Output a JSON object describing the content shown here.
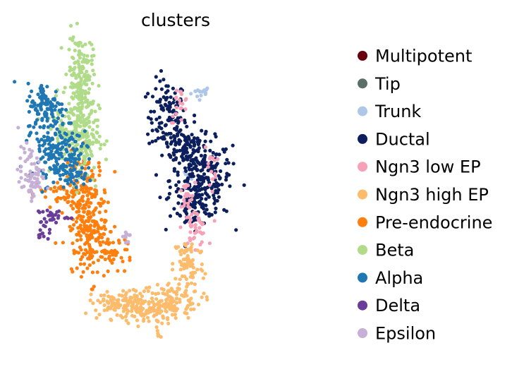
{
  "chart_data": {
    "type": "scatter",
    "title": "clusters",
    "xlabel": "",
    "ylabel": "",
    "grid": false,
    "axes_visible": false,
    "legend_position": "right",
    "xlim": [
      0,
      100
    ],
    "ylim": [
      0,
      100
    ],
    "point_count_note": "",
    "series": [
      {
        "name": "Multipotent",
        "color": "#67000d",
        "clusters": []
      },
      {
        "name": "Tip",
        "color": "#5a6e6a",
        "clusters": [
          [
            3,
            56,
            0.4,
            0.4,
            2
          ],
          [
            47,
            70,
            0.3,
            0.3,
            1
          ]
        ]
      },
      {
        "name": "Trunk",
        "color": "#aec7e8",
        "clusters": [
          [
            58,
            84,
            1.6,
            1.0,
            16
          ],
          [
            54,
            57,
            0.8,
            1.0,
            6
          ]
        ]
      },
      {
        "name": "Ductal",
        "color": "#0c1f5c",
        "clusters": [
          [
            47,
            76,
            3.0,
            6.0,
            110
          ],
          [
            53,
            66,
            3.5,
            3.5,
            80
          ],
          [
            58,
            55,
            5.0,
            6.5,
            230
          ],
          [
            56,
            46,
            3.0,
            3.0,
            50
          ]
        ]
      },
      {
        "name": "Ngn3 low EP",
        "color": "#f7a1b9",
        "clusters": [
          [
            51,
            80,
            1.5,
            3.0,
            20
          ],
          [
            56,
            39,
            2.0,
            3.0,
            40
          ],
          [
            61,
            60,
            1.0,
            4.0,
            15
          ],
          [
            53,
            49,
            1.5,
            2.5,
            20
          ]
        ]
      },
      {
        "name": "Ngn3 high EP",
        "color": "#fdbb6c",
        "clusters": [
          [
            54,
            27,
            2.5,
            5.0,
            80
          ],
          [
            48,
            15,
            5.0,
            3.0,
            100
          ],
          [
            40,
            12,
            5.0,
            2.5,
            110
          ],
          [
            32,
            14,
            5.0,
            2.5,
            90
          ],
          [
            44,
            4,
            0.5,
            1.0,
            6
          ]
        ]
      },
      {
        "name": "Pre-endocrine",
        "color": "#ff7f0e",
        "clusters": [
          [
            21,
            48,
            3.5,
            8.0,
            170
          ],
          [
            23,
            33,
            2.5,
            6.0,
            90
          ],
          [
            30,
            31,
            3.0,
            2.5,
            40
          ],
          [
            14,
            50,
            4.0,
            3.0,
            40
          ],
          [
            20,
            39,
            3.0,
            3.0,
            30
          ]
        ]
      },
      {
        "name": "Beta",
        "color": "#b0dc8a",
        "clusters": [
          [
            19,
            91,
            2.0,
            6.0,
            130
          ],
          [
            19,
            70,
            3.0,
            8.0,
            200
          ],
          [
            16,
            73,
            4.0,
            4.0,
            60
          ]
        ]
      },
      {
        "name": "Alpha",
        "color": "#1f77b4",
        "clusters": [
          [
            8,
            79,
            3.0,
            4.0,
            110
          ],
          [
            11,
            66,
            4.0,
            5.0,
            140
          ],
          [
            18,
            58,
            2.0,
            3.0,
            40
          ],
          [
            14,
            57,
            3.0,
            3.0,
            30
          ]
        ]
      },
      {
        "name": "Delta",
        "color": "#6a3d9a",
        "clusters": [
          [
            10,
            43,
            2.5,
            1.2,
            25
          ],
          [
            7,
            38,
            1.2,
            1.8,
            15
          ]
        ]
      },
      {
        "name": "Epsilon",
        "color": "#c7b0d6",
        "clusters": [
          [
            3,
            58,
            2.0,
            4.0,
            50
          ],
          [
            3,
            53,
            2.0,
            2.0,
            20
          ],
          [
            34,
            36,
            0.6,
            1.5,
            10
          ]
        ]
      }
    ]
  }
}
